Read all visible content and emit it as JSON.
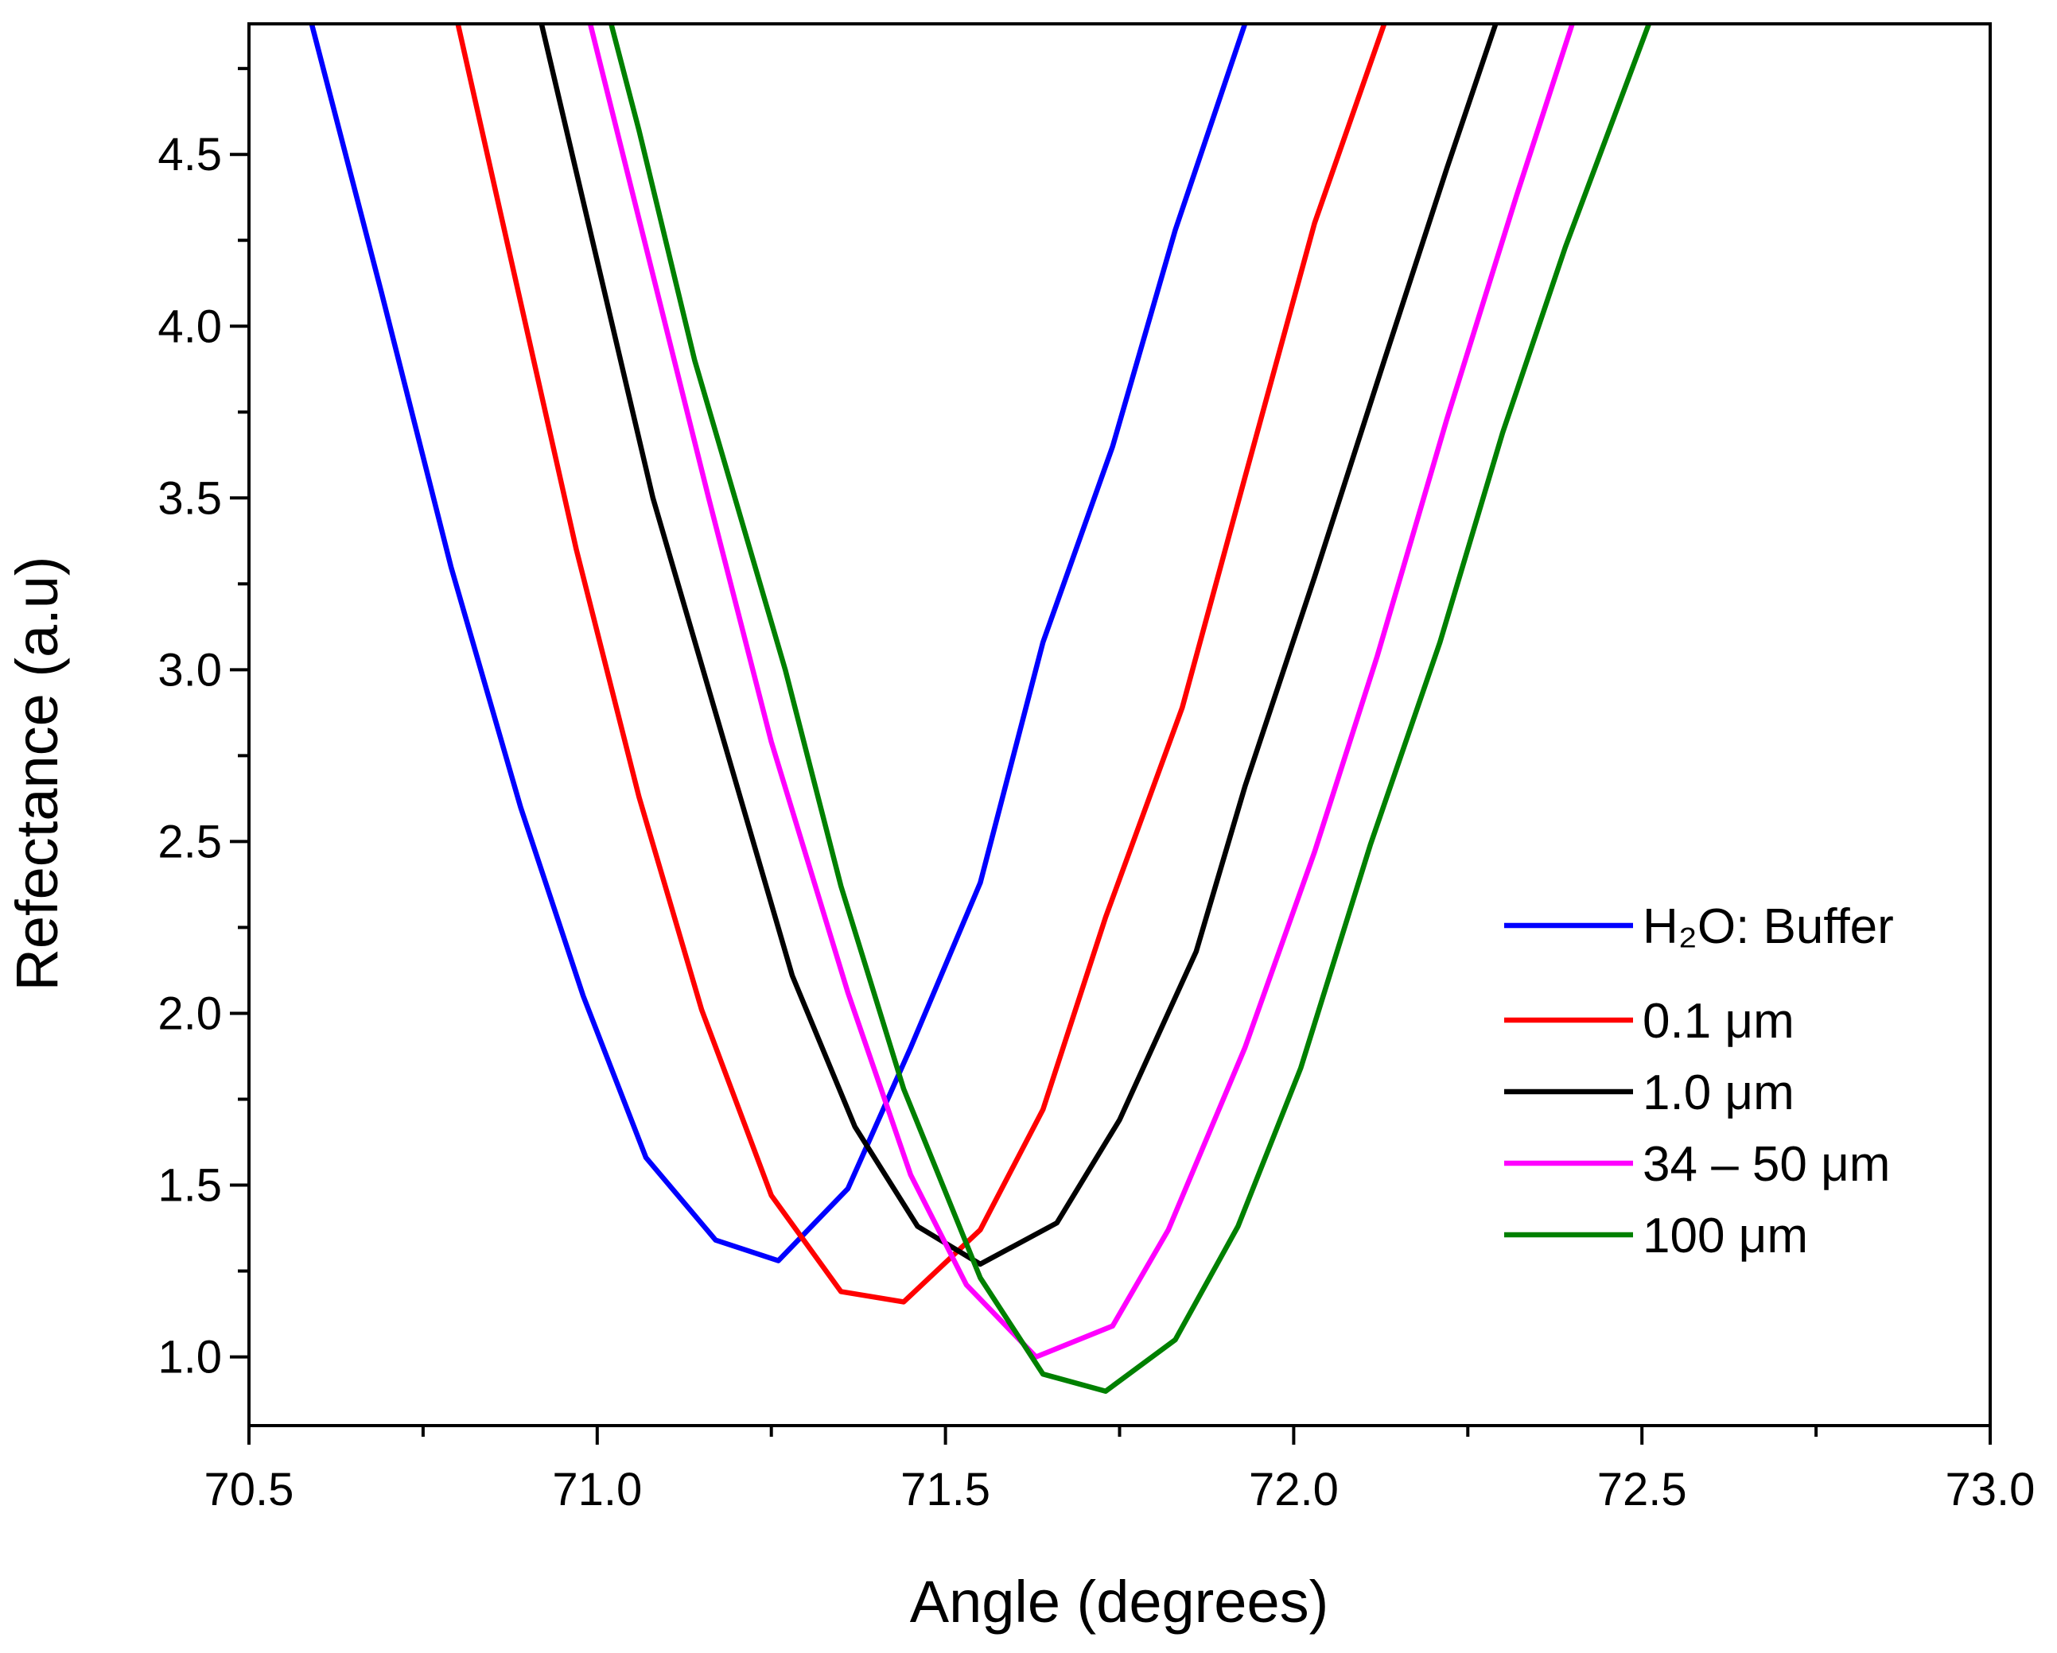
{
  "chart_data": {
    "type": "line",
    "xlabel": "Angle (degrees)",
    "ylabel": "Refectance (a.u)",
    "xlim": [
      70.5,
      73.0
    ],
    "ylim": [
      0.8,
      4.88
    ],
    "xticks": [
      70.5,
      {
        "value": 71.0,
        "label": "71.0"
      },
      71.5,
      {
        "value": 72.0,
        "label": "72.0"
      },
      72.5,
      {
        "value": 73.0,
        "label": "73.0"
      }
    ],
    "xminorticks": [
      70.75,
      71.25,
      71.75,
      72.25,
      72.75
    ],
    "yticks": [
      {
        "value": 1.0,
        "label": "1.0"
      },
      1.5,
      {
        "value": 2.0,
        "label": "2.0"
      },
      2.5,
      {
        "value": 3.0,
        "label": "3.0"
      },
      3.5,
      {
        "value": 4.0,
        "label": "4.0"
      },
      4.5
    ],
    "yminorticks": [
      1.25,
      1.75,
      2.25,
      2.75,
      3.25,
      3.75,
      4.25,
      4.75
    ],
    "legend": "lower right",
    "series": [
      {
        "name": "H₂O: Buffer",
        "color": "#0000ff",
        "x": [
          70.59,
          70.69,
          70.79,
          70.89,
          70.98,
          71.07,
          71.17,
          71.26,
          71.36,
          71.45,
          71.55,
          71.64,
          71.74,
          71.83,
          71.93
        ],
        "values": [
          4.88,
          4.1,
          3.3,
          2.6,
          2.05,
          1.58,
          1.34,
          1.28,
          1.49,
          1.9,
          2.38,
          3.08,
          3.65,
          4.28,
          4.88
        ]
      },
      {
        "name": "0.1  μm",
        "color": "#ff0000",
        "x": [
          70.8,
          70.97,
          71.06,
          71.15,
          71.25,
          71.35,
          71.44,
          71.55,
          71.64,
          71.73,
          71.84,
          71.93,
          72.03,
          72.13
        ],
        "values": [
          4.88,
          3.35,
          2.63,
          2.01,
          1.47,
          1.19,
          1.16,
          1.37,
          1.72,
          2.28,
          2.89,
          3.56,
          4.3,
          4.88
        ]
      },
      {
        "name": "1.0  μm",
        "color": "#000000",
        "x": [
          70.92,
          71.0,
          71.08,
          71.28,
          71.37,
          71.46,
          71.55,
          71.66,
          71.75,
          71.86,
          71.93,
          72.03,
          72.13,
          72.22,
          72.29
        ],
        "values": [
          4.88,
          4.19,
          3.5,
          2.11,
          1.67,
          1.38,
          1.27,
          1.39,
          1.69,
          2.18,
          2.66,
          3.27,
          3.9,
          4.46,
          4.88
        ]
      },
      {
        "name": "34 – 50 μm",
        "color": "#ff00ff",
        "x": [
          70.99,
          71.16,
          71.25,
          71.36,
          71.45,
          71.53,
          71.63,
          71.74,
          71.82,
          71.93,
          72.03,
          72.12,
          72.22,
          72.32,
          72.4
        ],
        "values": [
          4.88,
          3.5,
          2.79,
          2.06,
          1.53,
          1.21,
          1.0,
          1.09,
          1.37,
          1.9,
          2.47,
          3.04,
          3.73,
          4.38,
          4.88
        ]
      },
      {
        "name": "100 μm",
        "color": "#008000",
        "x": [
          71.02,
          71.06,
          71.14,
          71.27,
          71.35,
          71.44,
          71.55,
          71.64,
          71.73,
          71.83,
          71.92,
          72.01,
          72.11,
          72.21,
          72.3,
          72.39,
          72.51
        ],
        "values": [
          4.88,
          4.57,
          3.9,
          3.0,
          2.37,
          1.78,
          1.23,
          0.95,
          0.9,
          1.05,
          1.38,
          1.84,
          2.49,
          3.08,
          3.69,
          4.23,
          4.88
        ]
      }
    ]
  }
}
